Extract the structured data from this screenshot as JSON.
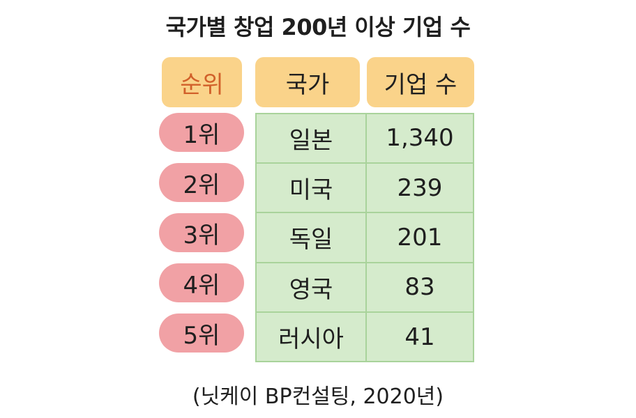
{
  "title": "국가별 창업 200년 이상 기업 수",
  "headers": {
    "rank": "순위",
    "country": "국가",
    "count": "기업 수"
  },
  "rows": [
    {
      "rank": "1위",
      "country": "일본",
      "count": "1,340"
    },
    {
      "rank": "2위",
      "country": "미국",
      "count": "239"
    },
    {
      "rank": "3위",
      "country": "독일",
      "count": "201"
    },
    {
      "rank": "4위",
      "country": "영국",
      "count": "83"
    },
    {
      "rank": "5위",
      "country": "러시아",
      "count": "41"
    }
  ],
  "source": "(닛케이 BP컨설팅, 2020년)",
  "colors": {
    "header_bg": "#fad38a",
    "rank_header_text": "#d1602a",
    "rank_pill_bg": "#f1a1a5",
    "table_bg": "#d5ebcc",
    "table_border": "#a9d39b"
  }
}
